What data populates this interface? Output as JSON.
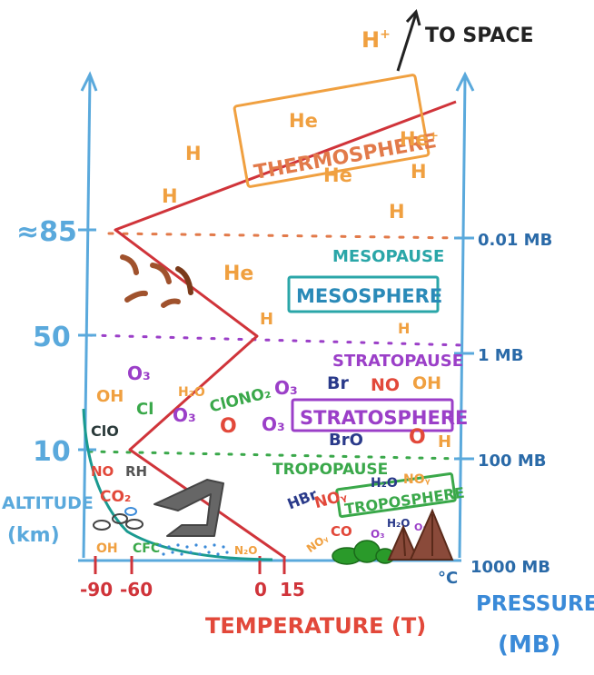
{
  "top": {
    "ion": "H",
    "ion_sup": "+",
    "to_space": "TO SPACE"
  },
  "altitude_ticks": [
    {
      "label": "≈85"
    },
    {
      "label": "50"
    },
    {
      "label": "10"
    }
  ],
  "altitude_axis_label_1": "ALTITUDE",
  "altitude_axis_label_2": "(km)",
  "pressure_ticks": [
    "0.01 MB",
    "1 MB",
    "100 MB",
    "1000 MB"
  ],
  "pressure_axis_label_1": "PRESSURE",
  "pressure_axis_label_2": "(MB)",
  "temperature_ticks": [
    "-90",
    "-60",
    "0",
    "15",
    "°C"
  ],
  "temperature_axis_label": "TEMPERATURE (T)",
  "layers": {
    "thermosphere": "THERMOSPHERE",
    "mesopause": "MESOPAUSE",
    "mesosphere": "MESOSPHERE",
    "stratopause": "STRATOPAUSE",
    "stratosphere": "STRATOSPHERE",
    "tropopause": "TROPOPAUSE",
    "troposphere": "TROPOSPHERE"
  },
  "species": {
    "thermo": [
      "He",
      "H",
      "He⁺",
      "He",
      "H",
      "H",
      "H"
    ],
    "meso": [
      "He",
      "H",
      "H"
    ],
    "strato": [
      "OH",
      "O₃",
      "Cl",
      "H₂O",
      "ClONO₂",
      "O₃",
      "Br",
      "NO",
      "OH",
      "O₃",
      "O",
      "O₃",
      "ClO",
      "BrO",
      "O",
      "H"
    ],
    "tropo": [
      "NO",
      "RH",
      "CO₂",
      "HBr",
      "NOᵧ",
      "H₂O",
      "NOᵧ",
      "OH",
      "CFC",
      "N₂O",
      "NOᵧ",
      "CO",
      "O₃",
      "H₂O",
      "O₃"
    ]
  },
  "colors": {
    "axis": "#5aa9dc",
    "temperature_line": "#d0343a",
    "thermo": "#f0a040",
    "meso_teal": "#2aa6a8",
    "strato_purple": "#9b3fc8",
    "green": "#3aa84a",
    "navy": "#2a3a8a",
    "brown": "#8a4a2a"
  }
}
